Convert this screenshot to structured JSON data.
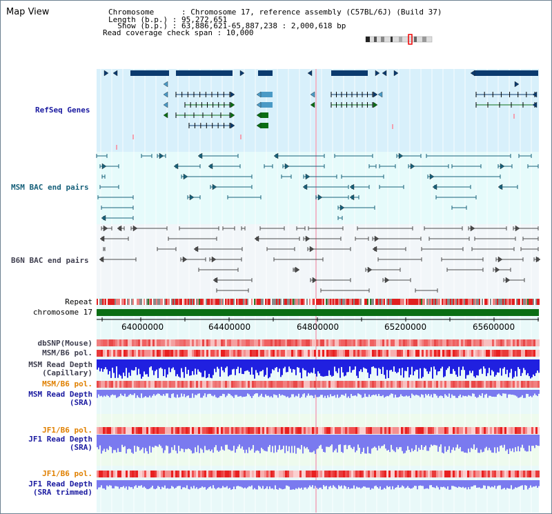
{
  "title": "Map View",
  "info": {
    "chromosome_line": "Chromosome      : Chromosome 17, reference assembly (C57BL/6J) (Build 37)",
    "length_line": "Length (b.p.) : 95,272,651",
    "show_line": "  Show (b.p.) : 63,886,621-65,887,238 : 2,000,618 bp",
    "coverage_line": "Read coverage check span : 10,000"
  },
  "tracks": {
    "refseq": "RefSeq Genes",
    "msm_bac": "MSM BAC end pairs",
    "b6n_bac": "B6N BAC end pairs",
    "repeat": "Repeat",
    "chromosome": "chromosome 17",
    "dbsnp": "dbSNP(Mouse)",
    "msm_b6_pol_1": "MSM/B6 pol.",
    "msm_read_depth_cap_1": "MSM Read Depth",
    "msm_read_depth_cap_2": "(Capillary)",
    "msm_b6_pol_2": "MSM/B6 pol.",
    "msm_read_depth_sra_1": "MSM Read Depth",
    "msm_read_depth_sra_2": "(SRA)",
    "jf1_b6_pol_1": "JF1/B6 pol.",
    "jf1_read_depth_sra_1": "JF1 Read Depth",
    "jf1_read_depth_sra_2": "(SRA)",
    "jf1_b6_pol_2": "JF1/B6 pol.",
    "jf1_read_depth_trim_1": "JF1 Read Depth",
    "jf1_read_depth_trim_2": "(SRA trimmed)"
  },
  "axis_ticks": [
    "64000000",
    "64400000",
    "64800000",
    "65200000",
    "65600000"
  ],
  "colors": {
    "refseq_bg": "#d8f0fb",
    "msm_bac_bg": "#e6fbfb",
    "b6n_bac_bg": "#f2f6f9",
    "lower_bg": "#e9f9f9",
    "gene_dark": "#0b3a6e",
    "gene_light": "#4a9ac6",
    "gene_green": "#0b6e14",
    "bac_teal": "#16607a",
    "bac_gray": "#4a4a4a",
    "chromosome_bar": "#0b6e14",
    "read_depth_blue": "#2020e0",
    "read_depth_light": "#7a7aef"
  }
}
